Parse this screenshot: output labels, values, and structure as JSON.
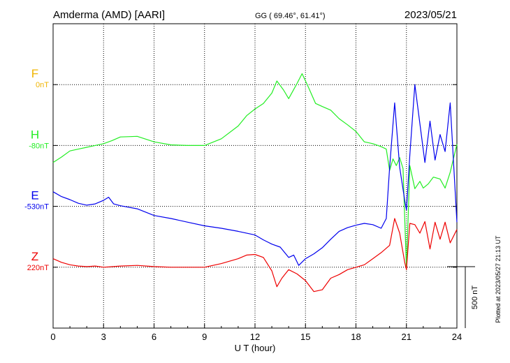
{
  "header": {
    "station": "Amderma (AMD)  [AARI]",
    "coords": "GG ( 69.46°,  61.41°)",
    "date": "2023/05/21"
  },
  "footer": {
    "plotted": "Plotted at 2023/05/27 21:13 UT",
    "scale_label": "500 nT"
  },
  "chart_data": {
    "type": "line",
    "title": "Amderma (AMD)  [AARI]",
    "xlabel": "U T (hour)",
    "ylabel": "",
    "xlim": [
      0,
      24
    ],
    "x_ticks": [
      0,
      3,
      6,
      9,
      12,
      15,
      18,
      21,
      24
    ],
    "x_tick_labels": [
      "0",
      "3",
      "6",
      "9",
      "12",
      "15",
      "18",
      "21",
      "24"
    ],
    "ylim_nT_per_div": 500,
    "grid": true,
    "series": [
      {
        "name": "F",
        "baseline_label": "0nT",
        "color": "#f0b400",
        "base_div": 1,
        "x": [],
        "y": []
      },
      {
        "name": "H",
        "baseline_label": "-80nT",
        "color": "#22ee22",
        "base_div": 2,
        "x": [
          0,
          0.5,
          1,
          1.5,
          2,
          2.5,
          3,
          3.5,
          4,
          5,
          6,
          7,
          8,
          9,
          10,
          11,
          11.5,
          12,
          12.5,
          13,
          13.3,
          13.7,
          14,
          14.5,
          14.8,
          15.2,
          15.6,
          16,
          16.5,
          17,
          17.5,
          18,
          18.5,
          19,
          19.5,
          19.8,
          20,
          20.2,
          20.4,
          20.6,
          20.8,
          21,
          21.2,
          21.5,
          21.8,
          22,
          22.3,
          22.6,
          23,
          23.3,
          23.6,
          24
        ],
        "y": [
          -140,
          -95,
          -45,
          -30,
          -15,
          0,
          15,
          40,
          70,
          75,
          30,
          5,
          0,
          0,
          55,
          160,
          245,
          300,
          345,
          430,
          530,
          455,
          385,
          510,
          590,
          470,
          345,
          320,
          290,
          220,
          170,
          115,
          30,
          15,
          -10,
          -30,
          -205,
          -110,
          -165,
          -100,
          -190,
          -1020,
          -165,
          -355,
          -295,
          -350,
          -315,
          -260,
          -275,
          -350,
          -220,
          10
        ]
      },
      {
        "name": "E",
        "baseline_label": "-530nT",
        "color": "#0000ee",
        "base_div": 3,
        "x": [
          0,
          0.5,
          1,
          1.5,
          2,
          2.5,
          3,
          3.3,
          3.6,
          4,
          5,
          6,
          7,
          8,
          9,
          10,
          11,
          12,
          12.5,
          13,
          13.5,
          14,
          14.3,
          14.6,
          15,
          15.5,
          16,
          16.5,
          17,
          17.5,
          18,
          18.5,
          19,
          19.5,
          19.8,
          20,
          20.3,
          20.6,
          20.9,
          21,
          21.2,
          21.5,
          21.8,
          22.1,
          22.4,
          22.7,
          23,
          23.3,
          23.6,
          24
        ],
        "y": [
          120,
          80,
          55,
          25,
          10,
          20,
          50,
          75,
          20,
          5,
          -20,
          -75,
          -100,
          -130,
          -160,
          -180,
          -205,
          -235,
          -275,
          -310,
          -335,
          -420,
          -400,
          -485,
          -430,
          -390,
          -340,
          -270,
          -205,
          -175,
          -155,
          -140,
          -150,
          -180,
          -100,
          320,
          850,
          320,
          50,
          -30,
          420,
          1000,
          680,
          360,
          700,
          380,
          590,
          450,
          850,
          -130
        ]
      },
      {
        "name": "Z",
        "baseline_label": "220nT",
        "color": "#ee0000",
        "base_div": 4,
        "x": [
          0,
          0.5,
          1,
          1.5,
          2,
          2.5,
          3,
          4,
          5,
          6,
          7,
          8,
          9,
          10,
          11,
          11.5,
          12,
          12.5,
          13,
          13.3,
          13.6,
          14,
          14.5,
          15,
          15.5,
          16,
          16.5,
          17,
          17.5,
          18,
          18.5,
          19,
          19.5,
          20,
          20.3,
          20.6,
          20.9,
          21,
          21.2,
          21.5,
          21.8,
          22.1,
          22.4,
          22.7,
          23,
          23.3,
          23.6,
          24
        ],
        "y": [
          70,
          40,
          20,
          10,
          5,
          10,
          0,
          10,
          15,
          5,
          0,
          0,
          0,
          30,
          70,
          100,
          105,
          80,
          -30,
          -160,
          -90,
          -20,
          -55,
          -110,
          -200,
          -185,
          -90,
          -60,
          -20,
          0,
          20,
          70,
          120,
          180,
          400,
          280,
          40,
          -20,
          360,
          350,
          280,
          375,
          150,
          370,
          230,
          370,
          200,
          310
        ]
      }
    ]
  }
}
